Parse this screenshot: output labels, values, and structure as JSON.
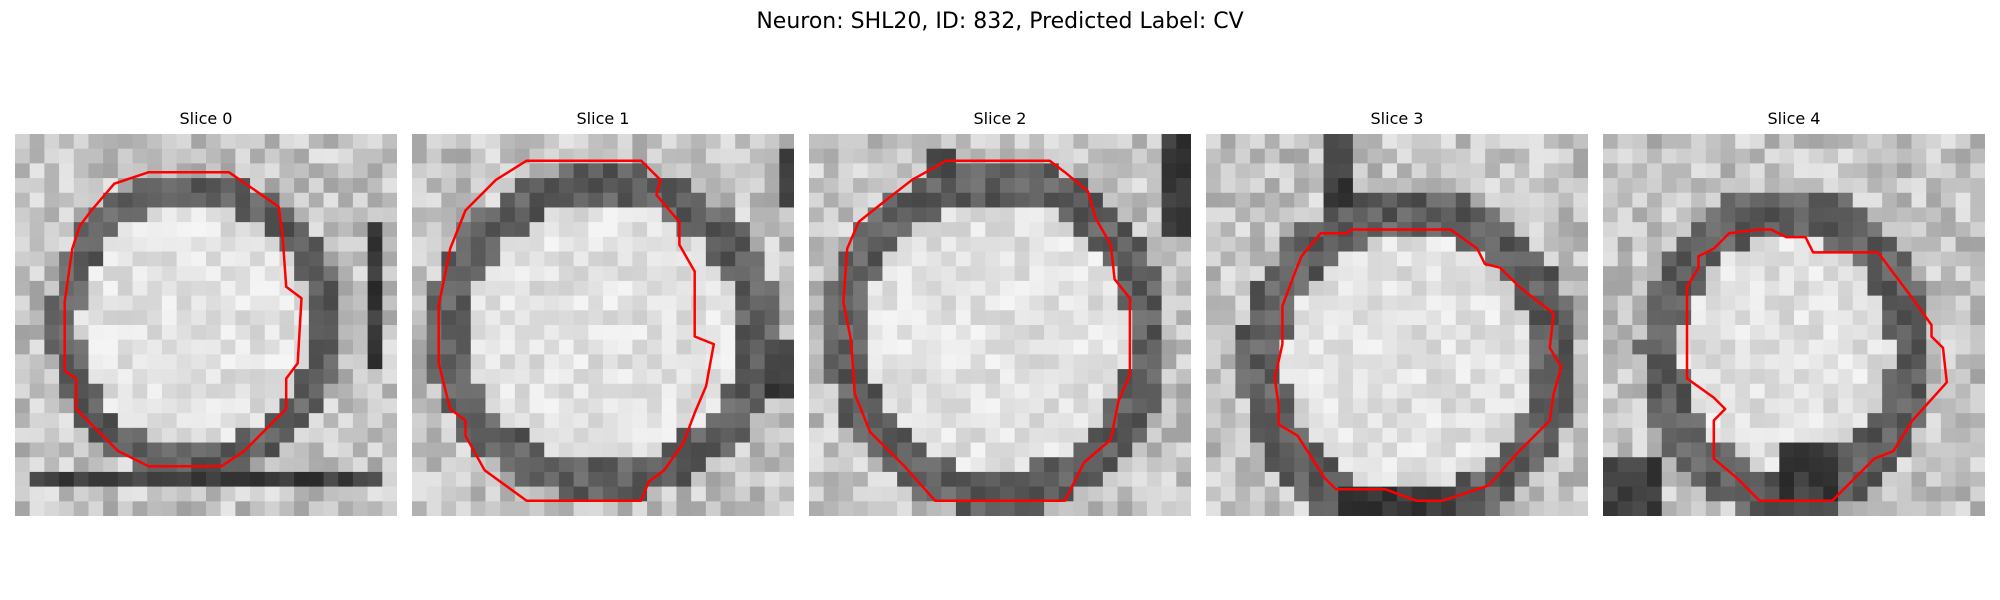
{
  "figure": {
    "title": "Neuron: SHL20, ID: 832, Predicted Label: CV"
  },
  "panels": [
    {
      "title": "Slice 0"
    },
    {
      "title": "Slice 1"
    },
    {
      "title": "Slice 2"
    },
    {
      "title": "Slice 3"
    },
    {
      "title": "Slice 4"
    }
  ],
  "colors": {
    "contour": "#ff0000",
    "background": "#ffffff"
  }
}
